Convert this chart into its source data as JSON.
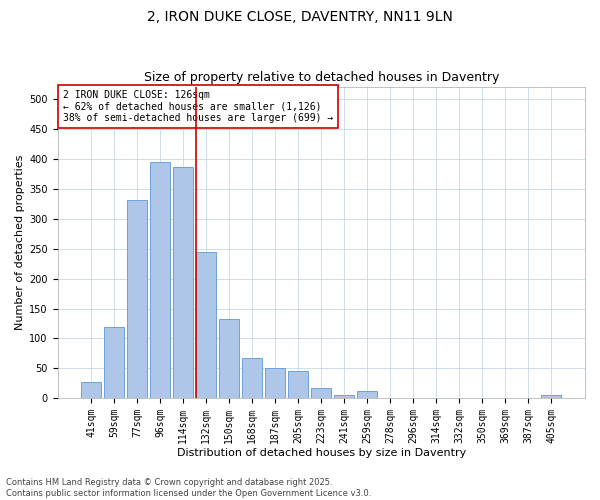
{
  "title1": "2, IRON DUKE CLOSE, DAVENTRY, NN11 9LN",
  "title2": "Size of property relative to detached houses in Daventry",
  "xlabel": "Distribution of detached houses by size in Daventry",
  "ylabel": "Number of detached properties",
  "bar_labels": [
    "41sqm",
    "59sqm",
    "77sqm",
    "96sqm",
    "114sqm",
    "132sqm",
    "150sqm",
    "168sqm",
    "187sqm",
    "205sqm",
    "223sqm",
    "241sqm",
    "259sqm",
    "278sqm",
    "296sqm",
    "314sqm",
    "332sqm",
    "350sqm",
    "369sqm",
    "387sqm",
    "405sqm"
  ],
  "bar_values": [
    28,
    119,
    332,
    394,
    387,
    244,
    133,
    68,
    50,
    45,
    18,
    6,
    12,
    0,
    0,
    0,
    0,
    0,
    0,
    0,
    5
  ],
  "bar_color": "#aec6e8",
  "bar_edge_color": "#5b9bd5",
  "vline_color": "#cc0000",
  "annotation_line1": "2 IRON DUKE CLOSE: 126sqm",
  "annotation_line2": "← 62% of detached houses are smaller (1,126)",
  "annotation_line3": "38% of semi-detached houses are larger (699) →",
  "ylim": [
    0,
    520
  ],
  "yticks": [
    0,
    50,
    100,
    150,
    200,
    250,
    300,
    350,
    400,
    450,
    500
  ],
  "footer1": "Contains HM Land Registry data © Crown copyright and database right 2025.",
  "footer2": "Contains public sector information licensed under the Open Government Licence v3.0.",
  "background_color": "#ffffff",
  "grid_color": "#c8d8e8",
  "title_fontsize": 10,
  "subtitle_fontsize": 9,
  "axis_label_fontsize": 8,
  "tick_fontsize": 7,
  "annotation_fontsize": 7,
  "footer_fontsize": 6
}
